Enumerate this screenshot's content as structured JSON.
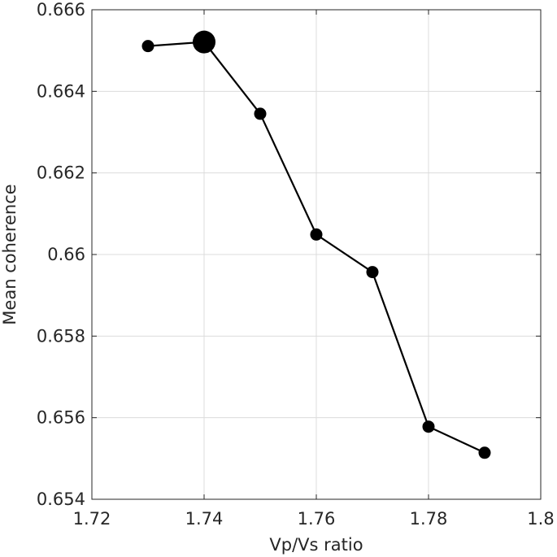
{
  "chart_data": {
    "type": "line",
    "title": "",
    "xlabel": "Vp/Vs ratio",
    "ylabel": "Mean coherence",
    "xlim": [
      1.72,
      1.8
    ],
    "ylim": [
      0.654,
      0.666
    ],
    "xticks": [
      1.72,
      1.74,
      1.76,
      1.78,
      1.8
    ],
    "xtick_labels": [
      "1.72",
      "1.74",
      "1.76",
      "1.78",
      "1.8"
    ],
    "yticks": [
      0.654,
      0.656,
      0.658,
      0.66,
      0.662,
      0.664,
      0.666
    ],
    "ytick_labels": [
      "0.654",
      "0.656",
      "0.658",
      "0.66",
      "0.662",
      "0.664",
      "0.666"
    ],
    "grid": true,
    "series": [
      {
        "x": [
          1.73,
          1.74,
          1.75,
          1.76,
          1.77,
          1.78,
          1.79
        ],
        "y": [
          0.66511,
          0.66521,
          0.66345,
          0.66049,
          0.65957,
          0.65578,
          0.65514
        ],
        "highlight_index": 1,
        "color": "#000000"
      }
    ]
  }
}
